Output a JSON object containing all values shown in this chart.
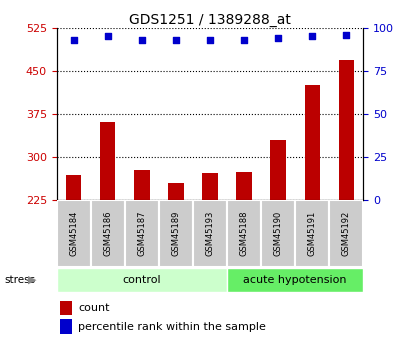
{
  "title": "GDS1251 / 1389288_at",
  "samples": [
    "GSM45184",
    "GSM45186",
    "GSM45187",
    "GSM45189",
    "GSM45193",
    "GSM45188",
    "GSM45190",
    "GSM45191",
    "GSM45192"
  ],
  "counts": [
    268,
    360,
    277,
    255,
    272,
    274,
    330,
    425,
    468
  ],
  "percentiles": [
    93,
    95,
    93,
    93,
    93,
    93,
    94,
    95,
    96
  ],
  "bar_color": "#bb0000",
  "dot_color": "#0000cc",
  "ylim_left": [
    225,
    525
  ],
  "yticks_left": [
    225,
    300,
    375,
    450,
    525
  ],
  "ylim_right": [
    0,
    100
  ],
  "yticks_right": [
    0,
    25,
    50,
    75,
    100
  ],
  "left_tick_color": "#cc0000",
  "right_tick_color": "#0000cc",
  "bar_width": 0.45,
  "group_defs": [
    {
      "start": 0,
      "end": 4,
      "label": "control",
      "color": "#ccffcc"
    },
    {
      "start": 5,
      "end": 8,
      "label": "acute hypotension",
      "color": "#66ee66"
    }
  ],
  "legend_count_label": "count",
  "legend_pct_label": "percentile rank within the sample",
  "stress_label": "stress",
  "title_fontsize": 10,
  "axis_fontsize": 8,
  "sample_fontsize": 6,
  "group_fontsize": 8,
  "legend_fontsize": 8
}
